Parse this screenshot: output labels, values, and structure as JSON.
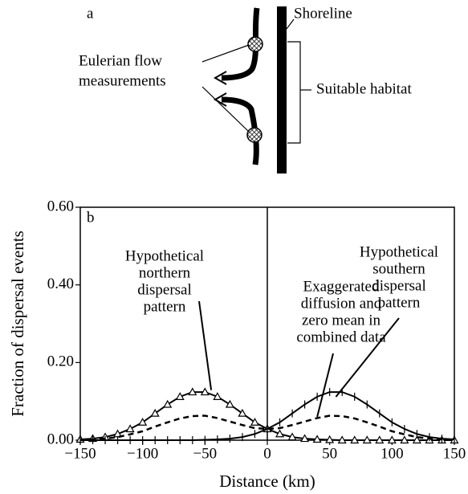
{
  "diagram": {
    "panel_label": "a",
    "shoreline": "Shoreline",
    "habitat": "Suitable habitat",
    "measurements": [
      "Eulerian flow",
      "measurements"
    ]
  },
  "chart_data": {
    "type": "line",
    "panel_label": "b",
    "x_label": "Distance (km)",
    "y_label": "Fraction of dispersal events",
    "xlim": [
      -150,
      150
    ],
    "ylim": [
      0,
      0.6
    ],
    "xticks": [
      {
        "value": -150,
        "label": "−150"
      },
      {
        "value": -100,
        "label": "−100"
      },
      {
        "value": -50,
        "label": "−50"
      },
      0,
      50,
      100,
      150
    ],
    "yticks": [
      {
        "value": 0,
        "label": "0.00"
      },
      {
        "value": 0.2,
        "label": "0.20"
      },
      {
        "value": 0.4,
        "label": "0.40"
      },
      {
        "value": 0.6,
        "label": "0.60"
      }
    ],
    "x": [
      -150,
      -140,
      -130,
      -120,
      -110,
      -100,
      -90,
      -80,
      -70,
      -60,
      -50,
      -40,
      -30,
      -20,
      -10,
      0,
      10,
      20,
      30,
      40,
      50,
      60,
      70,
      80,
      90,
      100,
      110,
      120,
      130,
      140,
      150
    ],
    "series": [
      {
        "name": "Hypothetical northern dispersal pattern",
        "color": "#000000",
        "marker": "triangle",
        "dashed": false,
        "values": [
          0.002,
          0.004,
          0.008,
          0.016,
          0.029,
          0.046,
          0.069,
          0.092,
          0.112,
          0.124,
          0.124,
          0.112,
          0.092,
          0.069,
          0.046,
          0.029,
          0.016,
          0.008,
          0.004,
          0.002,
          0.001,
          0,
          0,
          0,
          0,
          0,
          0,
          0,
          0,
          0,
          0
        ]
      },
      {
        "name": "Hypothetical southern dispersal pattern",
        "color": "#000000",
        "marker": "plus",
        "dashed": false,
        "values": [
          0,
          0,
          0,
          0,
          0,
          0,
          0,
          0,
          0,
          0,
          0.001,
          0.002,
          0.004,
          0.008,
          0.016,
          0.029,
          0.046,
          0.069,
          0.092,
          0.112,
          0.124,
          0.124,
          0.112,
          0.092,
          0.069,
          0.046,
          0.029,
          0.016,
          0.008,
          0.004,
          0.002
        ]
      },
      {
        "name": "Exaggerated diffusion and zero mean in combined data",
        "color": "#000000",
        "marker": "none",
        "dashed": true,
        "values": [
          0.001,
          0.002,
          0.004,
          0.008,
          0.015,
          0.023,
          0.035,
          0.046,
          0.056,
          0.062,
          0.063,
          0.057,
          0.048,
          0.039,
          0.031,
          0.029,
          0.031,
          0.039,
          0.048,
          0.057,
          0.063,
          0.062,
          0.056,
          0.046,
          0.035,
          0.023,
          0.015,
          0.008,
          0.004,
          0.002,
          0.001
        ]
      }
    ],
    "annotations": [
      {
        "lines": [
          "Hypothetical",
          "northern",
          "dispersal",
          "pattern"
        ]
      },
      {
        "lines": [
          "Exaggerated",
          "diffusion and",
          "zero mean in",
          "combined data"
        ]
      },
      {
        "lines": [
          "Hypothetical",
          "southern",
          "dispersal",
          "pattern"
        ]
      }
    ]
  }
}
